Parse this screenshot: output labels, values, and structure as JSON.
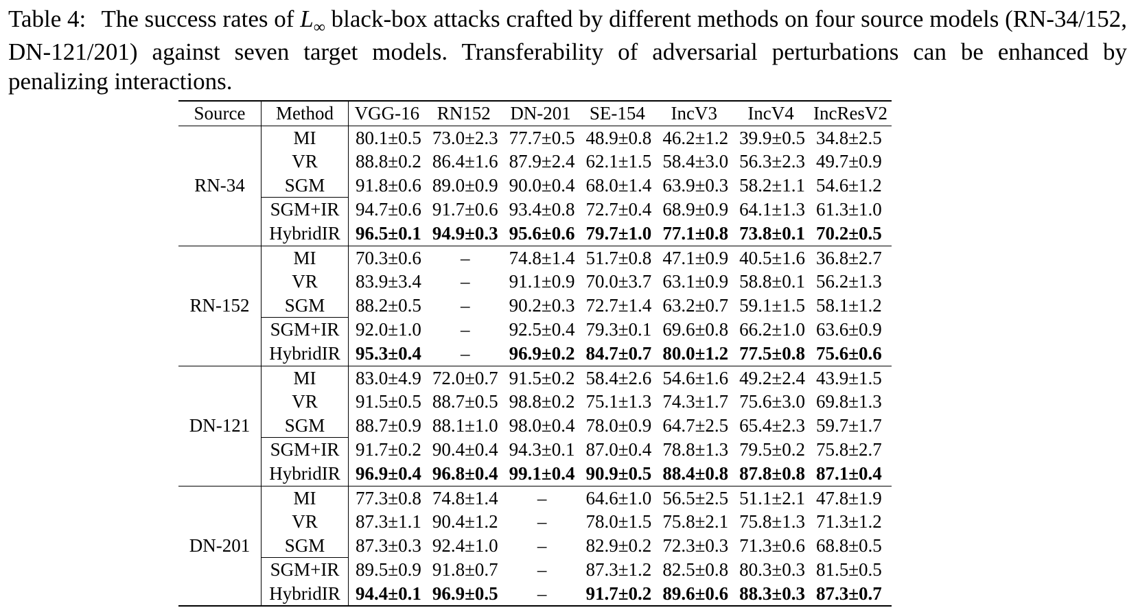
{
  "caption": {
    "label": "Table 4:",
    "text_before": "The success rates of",
    "math_symbol": "L",
    "math_subscript": "∞",
    "text_after": "black-box attacks crafted by different methods on four source models (RN-34/152, DN-121/201) against seven target models. Transferability of adversarial perturbations can be enhanced by penalizing interactions."
  },
  "table": {
    "headers": [
      "Source",
      "Method",
      "VGG-16",
      "RN152",
      "DN-201",
      "SE-154",
      "IncV3",
      "IncV4",
      "IncResV2"
    ],
    "groups": [
      {
        "source": "RN-34",
        "rows": [
          {
            "method": "MI",
            "values": [
              "80.1±0.5",
              "73.0±2.3",
              "77.7±0.5",
              "48.9±0.8",
              "46.2±1.2",
              "39.9±0.5",
              "34.8±2.5"
            ],
            "bold": false
          },
          {
            "method": "VR",
            "values": [
              "88.8±0.2",
              "86.4±1.6",
              "87.9±2.4",
              "62.1±1.5",
              "58.4±3.0",
              "56.3±2.3",
              "49.7±0.9"
            ],
            "bold": false
          },
          {
            "method": "SGM",
            "values": [
              "91.8±0.6",
              "89.0±0.9",
              "90.0±0.4",
              "68.0±1.4",
              "63.9±0.3",
              "58.2±1.1",
              "54.6±1.2"
            ],
            "bold": false
          },
          {
            "method": "SGM+IR",
            "values": [
              "94.7±0.6",
              "91.7±0.6",
              "93.4±0.8",
              "72.7±0.4",
              "68.9±0.9",
              "64.1±1.3",
              "61.3±1.0"
            ],
            "bold": false
          },
          {
            "method": "HybridIR",
            "values": [
              "96.5±0.1",
              "94.9±0.3",
              "95.6±0.6",
              "79.7±1.0",
              "77.1±0.8",
              "73.8±0.1",
              "70.2±0.5"
            ],
            "bold": true
          }
        ]
      },
      {
        "source": "RN-152",
        "rows": [
          {
            "method": "MI",
            "values": [
              "70.3±0.6",
              "–",
              "74.8±1.4",
              "51.7±0.8",
              "47.1±0.9",
              "40.5±1.6",
              "36.8±2.7"
            ],
            "bold": false
          },
          {
            "method": "VR",
            "values": [
              "83.9±3.4",
              "–",
              "91.1±0.9",
              "70.0±3.7",
              "63.1±0.9",
              "58.8±0.1",
              "56.2±1.3"
            ],
            "bold": false
          },
          {
            "method": "SGM",
            "values": [
              "88.2±0.5",
              "–",
              "90.2±0.3",
              "72.7±1.4",
              "63.2±0.7",
              "59.1±1.5",
              "58.1±1.2"
            ],
            "bold": false
          },
          {
            "method": "SGM+IR",
            "values": [
              "92.0±1.0",
              "–",
              "92.5±0.4",
              "79.3±0.1",
              "69.6±0.8",
              "66.2±1.0",
              "63.6±0.9"
            ],
            "bold": false
          },
          {
            "method": "HybridIR",
            "values": [
              "95.3±0.4",
              "–",
              "96.9±0.2",
              "84.7±0.7",
              "80.0±1.2",
              "77.5±0.8",
              "75.6±0.6"
            ],
            "bold": true
          }
        ]
      },
      {
        "source": "DN-121",
        "rows": [
          {
            "method": "MI",
            "values": [
              "83.0±4.9",
              "72.0±0.7",
              "91.5±0.2",
              "58.4±2.6",
              "54.6±1.6",
              "49.2±2.4",
              "43.9±1.5"
            ],
            "bold": false
          },
          {
            "method": "VR",
            "values": [
              "91.5±0.5",
              "88.7±0.5",
              "98.8±0.2",
              "75.1±1.3",
              "74.3±1.7",
              "75.6±3.0",
              "69.8±1.3"
            ],
            "bold": false
          },
          {
            "method": "SGM",
            "values": [
              "88.7±0.9",
              "88.1±1.0",
              "98.0±0.4",
              "78.0±0.9",
              "64.7±2.5",
              "65.4±2.3",
              "59.7±1.7"
            ],
            "bold": false
          },
          {
            "method": "SGM+IR",
            "values": [
              "91.7±0.2",
              "90.4±0.4",
              "94.3±0.1",
              "87.0±0.4",
              "78.8±1.3",
              "79.5±0.2",
              "75.8±2.7"
            ],
            "bold": false
          },
          {
            "method": "HybridIR",
            "values": [
              "96.9±0.4",
              "96.8±0.4",
              "99.1±0.4",
              "90.9±0.5",
              "88.4±0.8",
              "87.8±0.8",
              "87.1±0.4"
            ],
            "bold": true
          }
        ]
      },
      {
        "source": "DN-201",
        "rows": [
          {
            "method": "MI",
            "values": [
              "77.3±0.8",
              "74.8±1.4",
              "–",
              "64.6±1.0",
              "56.5±2.5",
              "51.1±2.1",
              "47.8±1.9"
            ],
            "bold": false
          },
          {
            "method": "VR",
            "values": [
              "87.3±1.1",
              "90.4±1.2",
              "–",
              "78.0±1.5",
              "75.8±2.1",
              "75.8±1.3",
              "71.3±1.2"
            ],
            "bold": false
          },
          {
            "method": "SGM",
            "values": [
              "87.3±0.3",
              "92.4±1.0",
              "–",
              "82.9±0.2",
              "72.3±0.3",
              "71.3±0.6",
              "68.8±0.5"
            ],
            "bold": false
          },
          {
            "method": "SGM+IR",
            "values": [
              "89.5±0.9",
              "91.8±0.7",
              "–",
              "87.3±1.2",
              "82.5±0.8",
              "80.3±0.3",
              "81.5±0.5"
            ],
            "bold": false
          },
          {
            "method": "HybridIR",
            "values": [
              "94.4±0.1",
              "96.9±0.5",
              "–",
              "91.7±0.2",
              "89.6±0.6",
              "88.3±0.3",
              "87.3±0.7"
            ],
            "bold": true
          }
        ]
      }
    ]
  }
}
